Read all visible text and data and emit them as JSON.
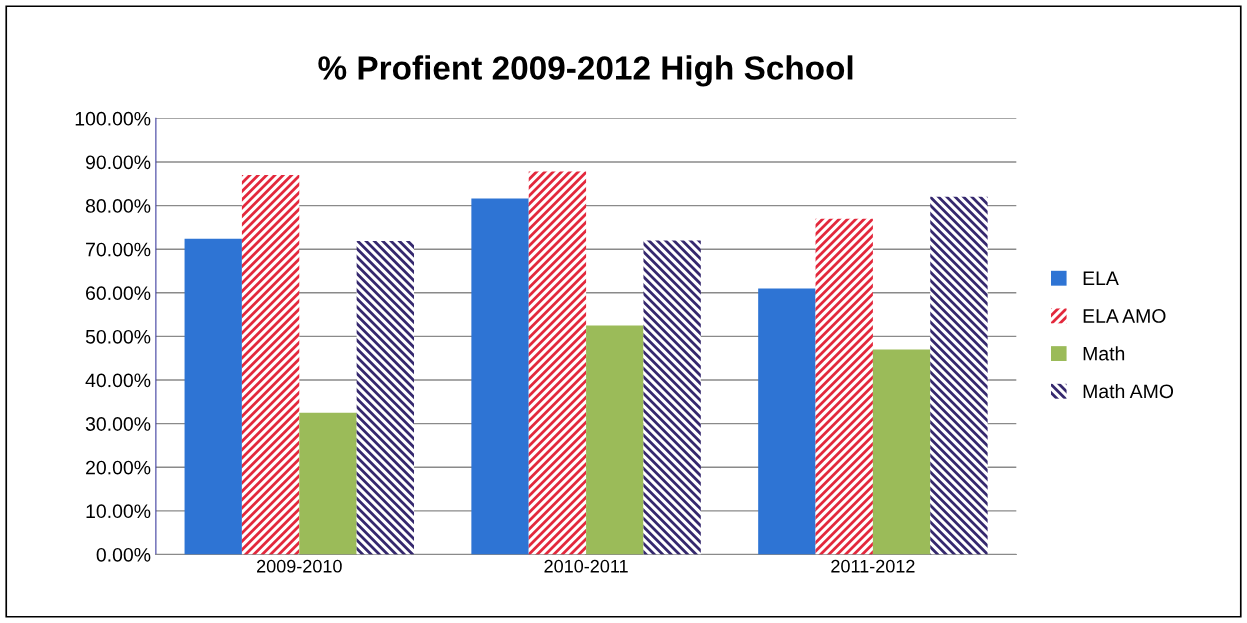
{
  "chart_data": {
    "type": "bar",
    "title": "% Profient 2009-2012 High School",
    "categories": [
      "2009-2010",
      "2010-2011",
      "2011-2012"
    ],
    "series": [
      {
        "name": "ELA",
        "color": "#2e74d4",
        "values": [
          0.724,
          0.816,
          0.61
        ]
      },
      {
        "name": "ELA AMO",
        "color": "#e3283c",
        "values": [
          0.87,
          0.878,
          0.77
        ]
      },
      {
        "name": "Math",
        "color": "#9bbb59",
        "values": [
          0.325,
          0.525,
          0.47
        ]
      },
      {
        "name": "Math AMO",
        "color": "#35286e",
        "values": [
          0.719,
          0.72,
          0.82
        ]
      }
    ],
    "ylim": [
      0,
      1
    ],
    "yticks": [
      {
        "value": 0,
        "label": "0.00%"
      },
      {
        "value": 0.1,
        "label": "10.00%"
      },
      {
        "value": 0.2,
        "label": "20.00%"
      },
      {
        "value": 0.3,
        "label": "30.00%"
      },
      {
        "value": 0.4,
        "label": "40.00%"
      },
      {
        "value": 0.5,
        "label": "50.00%"
      },
      {
        "value": 0.6,
        "label": "60.00%"
      },
      {
        "value": 0.7,
        "label": "70.00%"
      },
      {
        "value": 0.8,
        "label": "80.00%"
      },
      {
        "value": 0.9,
        "label": "90.00%"
      },
      {
        "value": 1,
        "label": "100.00%"
      }
    ],
    "grid": "y",
    "legend": "right"
  }
}
